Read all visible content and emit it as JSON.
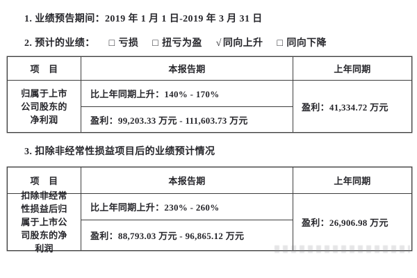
{
  "document": {
    "period_line": "1. 业绩预告期间：2019 年 1 月 1 日-2019 年 3 月 31 日",
    "forecast_line": {
      "label": "2. 预计的业绩：",
      "options": [
        {
          "mark": "□",
          "label": "亏损"
        },
        {
          "mark": "□",
          "label": "扭亏为盈"
        },
        {
          "mark": "√",
          "label": "同向上升"
        },
        {
          "mark": "□",
          "label": "同向下降"
        }
      ]
    },
    "section3_title": "3. 扣除非经常性损益项目后的业绩预计情况",
    "table1": {
      "headers": {
        "item": "项　目",
        "current": "本报告期",
        "prior": "上年同期"
      },
      "row_label": "归属于上市公司股东的净利润",
      "current_change": "比上年同期上升：140% - 170%",
      "current_profit": "盈利：99,203.33 万元 - 111,603.73 万元",
      "prior_profit": "盈利：41,334.72 万元"
    },
    "table2": {
      "headers": {
        "item": "项　目",
        "current": "本报告期",
        "prior": "上年同期"
      },
      "row_label": "扣除非经常性损益后归属于上市公司股东的净利润",
      "current_change": "比上年同期上升：230% - 260%",
      "current_profit": "盈利：88,793.03 万元 - 96,865.12 万元",
      "prior_profit": "盈利：26,906.98 万元"
    },
    "colors": {
      "text": "#26262b",
      "border": "#3c3c3c",
      "background": "#ffffff"
    }
  }
}
